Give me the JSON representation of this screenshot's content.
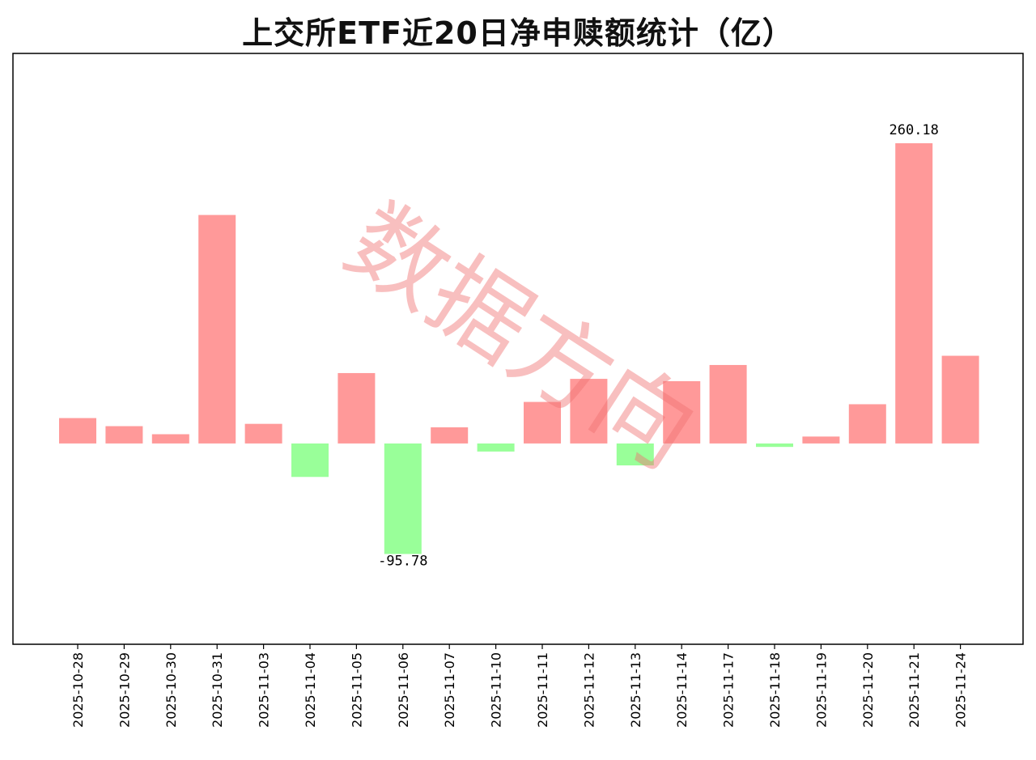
{
  "chart_data": {
    "type": "bar",
    "title": "上交所ETF近20日净申赎额统计（亿）",
    "xlabel": "",
    "ylabel": "",
    "categories": [
      "2025-10-28",
      "2025-10-29",
      "2025-10-30",
      "2025-10-31",
      "2025-11-03",
      "2025-11-04",
      "2025-11-05",
      "2025-11-06",
      "2025-11-07",
      "2025-11-10",
      "2025-11-11",
      "2025-11-12",
      "2025-11-13",
      "2025-11-14",
      "2025-11-17",
      "2025-11-18",
      "2025-11-19",
      "2025-11-20",
      "2025-11-21",
      "2025-11-24"
    ],
    "values": [
      22,
      15,
      8,
      198,
      17,
      -29,
      61,
      -95.78,
      14,
      -7,
      36,
      56,
      -19,
      54,
      68,
      -3,
      6,
      34,
      260.18,
      76
    ],
    "annotations": [
      {
        "category": "2025-11-21",
        "text": "260.18"
      },
      {
        "category": "2025-11-06",
        "text": "-95.78"
      }
    ],
    "ylim": [
      -174,
      338
    ],
    "y_ticks_shown": false,
    "grid": false,
    "legend": "none",
    "colors": {
      "positive": "#ff9999",
      "negative": "#99ff99",
      "axes": "#000000"
    },
    "watermark": "数据方向"
  }
}
